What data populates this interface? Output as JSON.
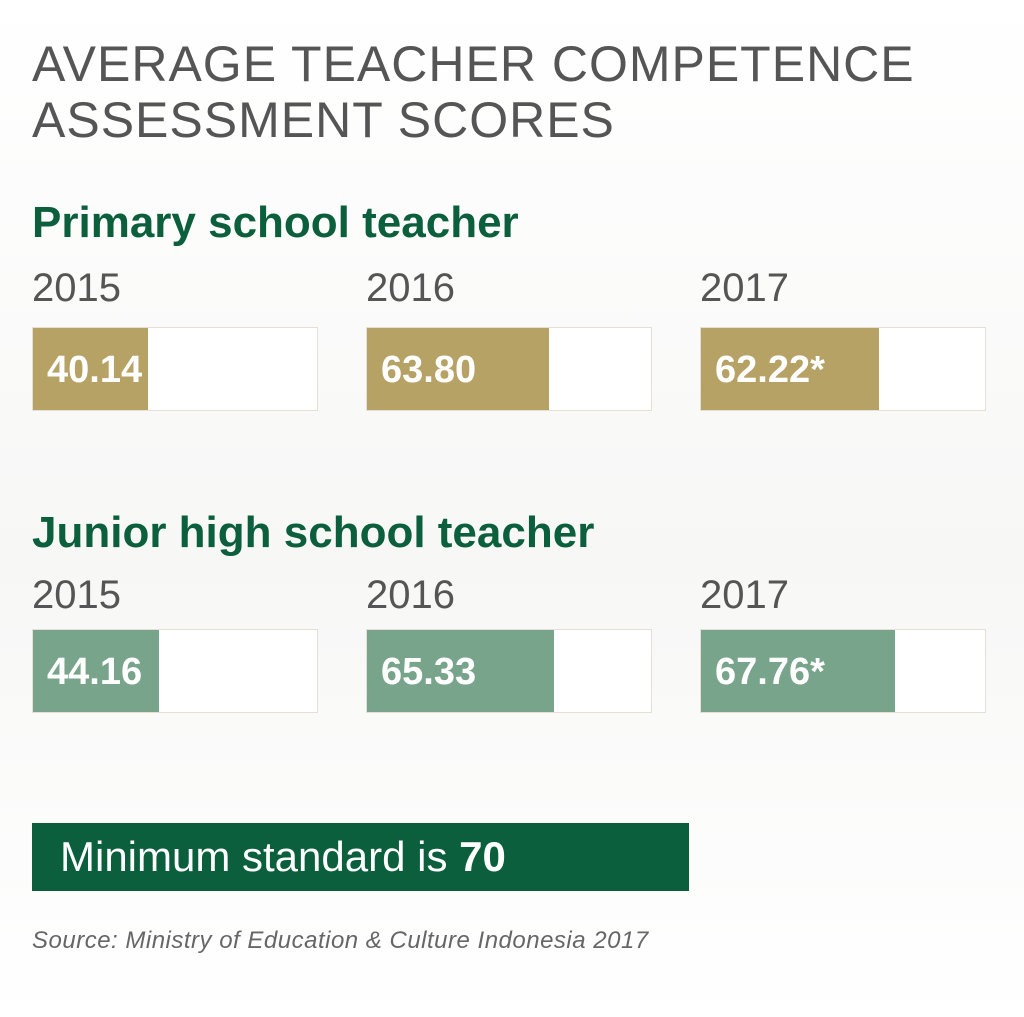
{
  "title_line1": "AVERAGE TEACHER COMPETENCE",
  "title_line2": "ASSESSMENT SCORES",
  "colors": {
    "title": "#555555",
    "section_title": "#0b5f3c",
    "primary_bar": "#b6a265",
    "junior_bar": "#77a48b",
    "minimum_box": "#0b5f3c"
  },
  "minimum": {
    "text": "Minimum standard is ",
    "value": "70"
  },
  "source": "Source: Ministry of Education & Culture Indonesia 2017",
  "chart_data": [
    {
      "type": "bar",
      "title": "Primary school teacher",
      "categories": [
        "2015",
        "2016",
        "2017"
      ],
      "values": [
        40.14,
        63.8,
        62.22
      ],
      "labels": [
        "40.14",
        "63.80",
        "62.22*"
      ],
      "ylim": [
        0,
        100
      ],
      "color": "#b6a265"
    },
    {
      "type": "bar",
      "title": "Junior high school teacher",
      "categories": [
        "2015",
        "2016",
        "2017"
      ],
      "values": [
        44.16,
        65.33,
        67.76
      ],
      "labels": [
        "44.16",
        "65.33",
        "67.76*"
      ],
      "ylim": [
        0,
        100
      ],
      "color": "#77a48b"
    }
  ]
}
